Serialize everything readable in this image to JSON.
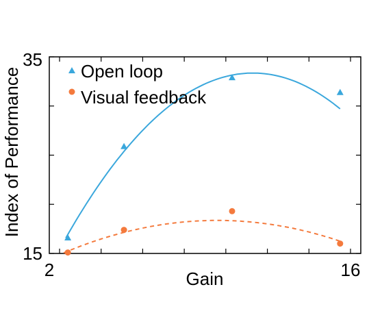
{
  "chart_data": {
    "type": "scatter",
    "xlabel": "Gain",
    "ylabel": "Index of Performance",
    "xlim": [
      2,
      16
    ],
    "ylim": [
      15,
      35
    ],
    "x_tick_labels": [
      "2",
      "16"
    ],
    "y_tick_labels": [
      "35",
      "15"
    ],
    "grid": false,
    "legend_position": "top-left",
    "series": [
      {
        "name": "Open loop",
        "marker": "triangle",
        "line_style": "solid",
        "color": "#3aa7dc",
        "x": [
          2.4,
          5.1,
          10.3,
          15.5
        ],
        "y": [
          16.6,
          25.9,
          32.9,
          31.4
        ],
        "fit": {
          "x_min": 2.3,
          "x_max": 15.5,
          "coefficients": [
            6.9,
            4.68,
            -0.207
          ]
        }
      },
      {
        "name": "Visual feedback",
        "marker": "circle",
        "line_style": "dashed",
        "color": "#f47a3d",
        "x": [
          2.4,
          5.1,
          10.3,
          15.5
        ],
        "y": [
          15.1,
          17.4,
          19.3,
          16.0
        ],
        "fit": {
          "x_min": 2.2,
          "x_max": 15.5,
          "coefficients": [
            12.8,
            1.16,
            -0.0605
          ]
        }
      }
    ]
  }
}
